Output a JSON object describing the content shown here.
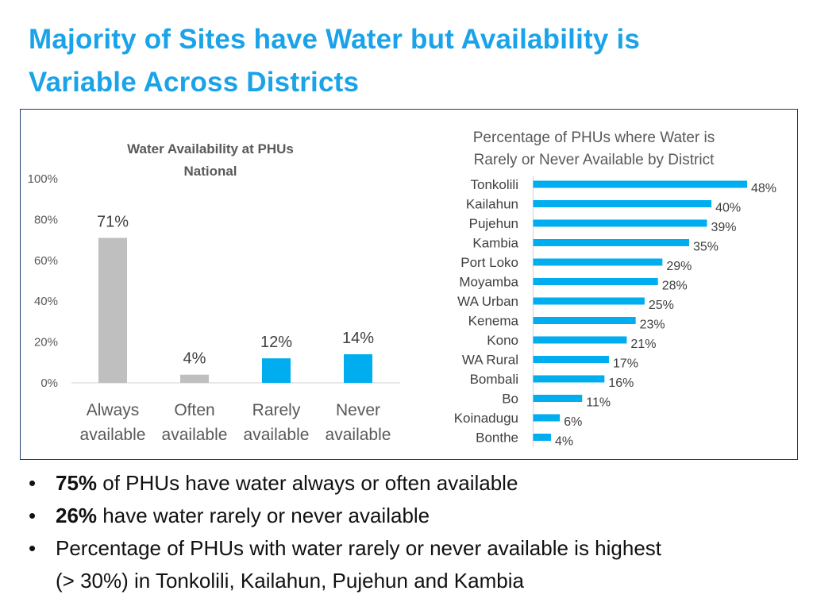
{
  "page": {
    "title_line1": "Majority of Sites have Water but Availability is",
    "title_line2": "Variable Across Districts",
    "colors": {
      "title": "#1aa3e8",
      "gray_bar": "#bfbfbf",
      "blue_bar": "#00aeef",
      "frame": "#1f3a6e"
    }
  },
  "chart_data": [
    {
      "type": "bar",
      "title_line1": "Water Availability at PHUs",
      "title_line2": "National",
      "categories": [
        "Always available",
        "Often available",
        "Rarely available",
        "Never available"
      ],
      "category_lines": [
        [
          "Always",
          "available"
        ],
        [
          "Often",
          "available"
        ],
        [
          "Rarely",
          "available"
        ],
        [
          "Never",
          "available"
        ]
      ],
      "values": [
        71,
        4,
        12,
        14
      ],
      "data_labels": [
        "71%",
        "4%",
        "12%",
        "14%"
      ],
      "bar_colors": [
        "#bfbfbf",
        "#bfbfbf",
        "#00aeef",
        "#00aeef"
      ],
      "y_ticks": [
        "0%",
        "20%",
        "40%",
        "60%",
        "80%",
        "100%"
      ],
      "ylim": [
        0,
        100
      ],
      "grid": false
    },
    {
      "type": "bar",
      "orientation": "horizontal",
      "title_line1": "Percentage of PHUs where Water is",
      "title_line2": "Rarely or Never Available by District",
      "categories": [
        "Tonkolili",
        "Kailahun",
        "Pujehun",
        "Kambia",
        "Port Loko",
        "Moyamba",
        "WA Urban",
        "Kenema",
        "Kono",
        "WA Rural",
        "Bombali",
        "Bo",
        "Koinadugu",
        "Bonthe"
      ],
      "values": [
        48,
        40,
        39,
        35,
        29,
        28,
        25,
        23,
        21,
        17,
        16,
        11,
        6,
        4
      ],
      "data_labels": [
        "48%",
        "40%",
        "39%",
        "35%",
        "29%",
        "28%",
        "25%",
        "23%",
        "21%",
        "17%",
        "16%",
        "11%",
        "6%",
        "4%"
      ],
      "bar_color": "#00aeef",
      "xlim": [
        0,
        48
      ],
      "grid": false
    }
  ],
  "bullets": [
    {
      "bold": "75%",
      "text": " of PHUs have water always or often available"
    },
    {
      "bold": "26%",
      "text": " have water rarely or never available"
    },
    {
      "bold": "",
      "text": "Percentage of PHUs with water rarely or never available is highest"
    },
    {
      "bold": "",
      "text": "(> 30%) in Tonkolili, Kailahun, Pujehun and Kambia"
    }
  ],
  "bullet_symbol": "•"
}
